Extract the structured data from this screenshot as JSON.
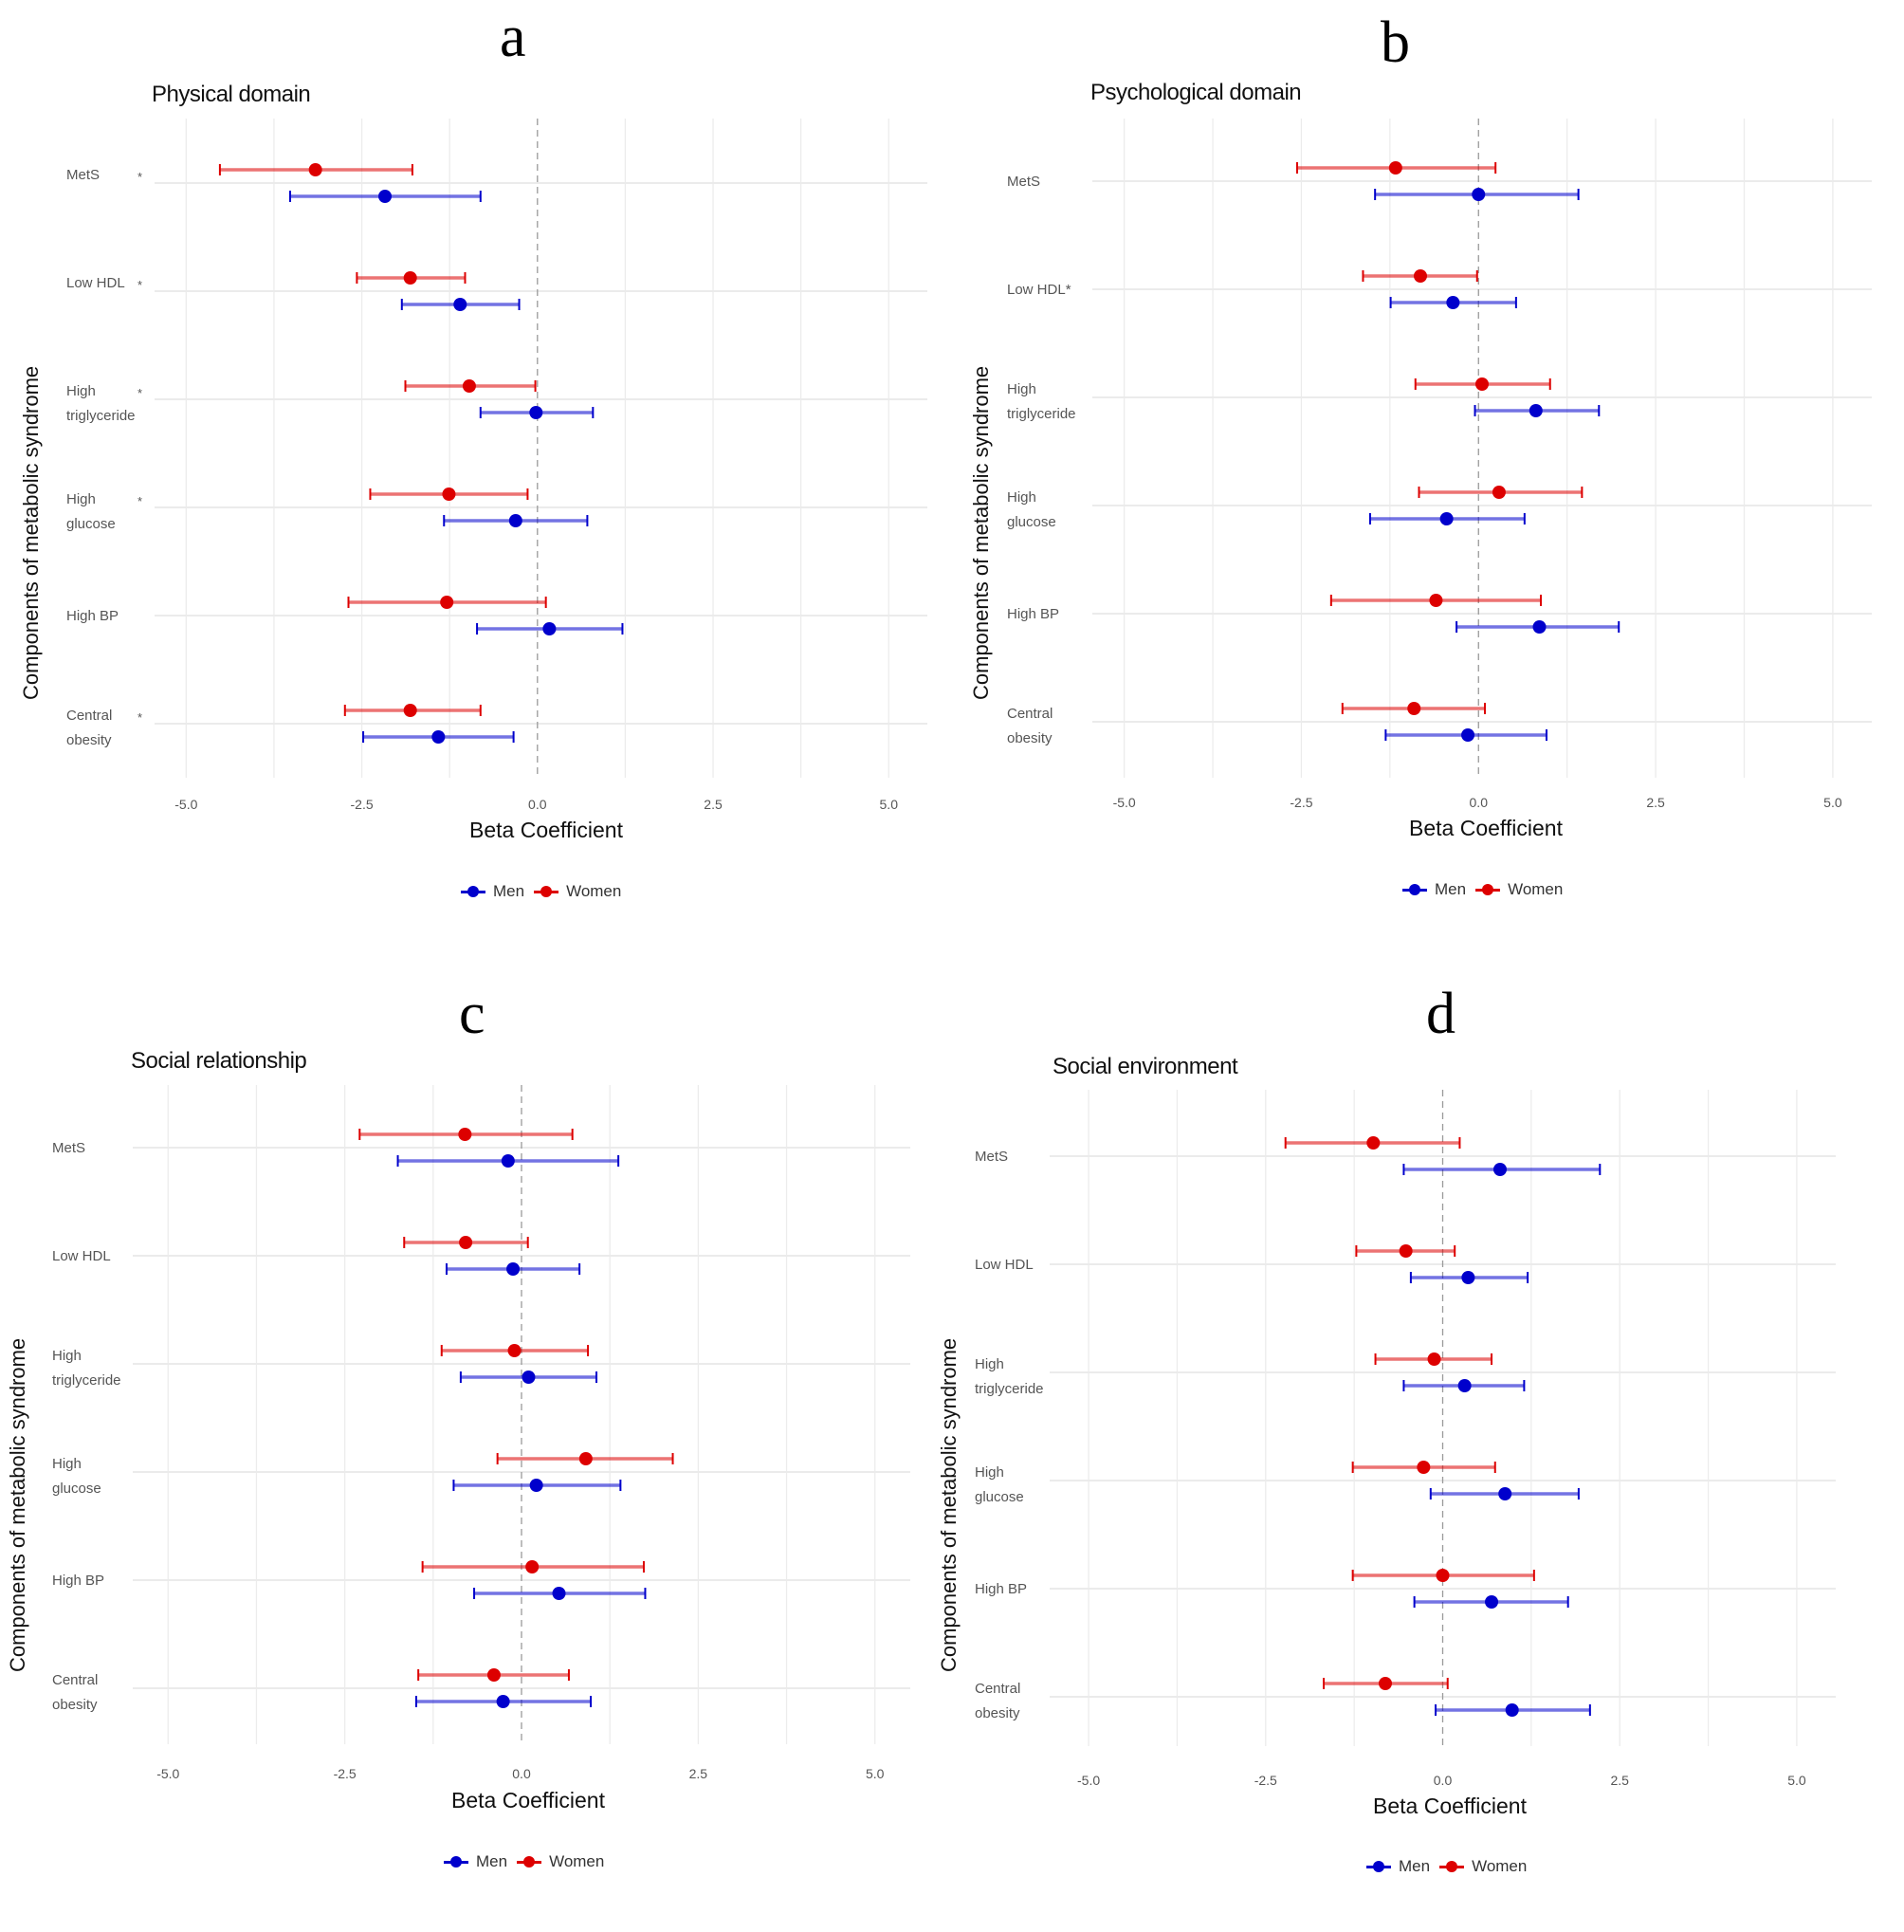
{
  "figure": {
    "panels": [
      "a",
      "b",
      "c",
      "d"
    ]
  },
  "legend": {
    "men_label": "Men",
    "women_label": "Women",
    "men_color": "#0000cc",
    "women_color": "#dd0000"
  },
  "chart_data": [
    {
      "type": "scatter",
      "subtype": "forest-plot",
      "panel_letter": "a",
      "title": "Physical domain",
      "xlabel": "Beta Coefficient",
      "ylabel": "Components of metabolic syndrome",
      "xlim": [
        -5.45,
        5.55
      ],
      "xticks": [
        -5.0,
        -2.5,
        0.0,
        2.5,
        5.0
      ],
      "xtick_labels": [
        "-5.0",
        "-2.5",
        "0.0",
        "2.5",
        "5.0"
      ],
      "reference_line": 0,
      "grid": true,
      "legend_position": "bottom",
      "categories": [
        "MetS",
        "Low HDL",
        "High triglyceride",
        "High glucose",
        "High BP",
        "Central obesity"
      ],
      "category_labels": [
        [
          "MetS",
          "*"
        ],
        [
          "Low HDL",
          "*"
        ],
        [
          "High",
          "triglyceride",
          "*"
        ],
        [
          "High",
          "glucose",
          "*"
        ],
        [
          "High BP"
        ],
        [
          "Central",
          "obesity",
          "*"
        ]
      ],
      "series": [
        {
          "name": "Women",
          "color": "#dd0000",
          "values": [
            -3.16,
            -1.81,
            -0.97,
            -1.26,
            -1.29,
            -1.81
          ],
          "ci_low": [
            -4.52,
            -2.57,
            -1.88,
            -2.38,
            -2.69,
            -2.74
          ],
          "ci_high": [
            -1.78,
            -1.03,
            -0.03,
            -0.14,
            0.12,
            -0.81
          ]
        },
        {
          "name": "Men",
          "color": "#0000cc",
          "values": [
            -2.17,
            -1.1,
            -0.02,
            -0.31,
            0.17,
            -1.41
          ],
          "ci_low": [
            -3.52,
            -1.93,
            -0.81,
            -1.33,
            -0.86,
            -2.48
          ],
          "ci_high": [
            -0.81,
            -0.26,
            0.79,
            0.71,
            1.21,
            -0.34
          ]
        }
      ]
    },
    {
      "type": "scatter",
      "subtype": "forest-plot",
      "panel_letter": "b",
      "title": "Psychological domain",
      "xlabel": "Beta Coefficient",
      "ylabel": "Components of metabolic syndrome",
      "xlim": [
        -5.45,
        5.55
      ],
      "xticks": [
        -5.0,
        -2.5,
        0.0,
        2.5,
        5.0
      ],
      "xtick_labels": [
        "-5.0",
        "-2.5",
        "0.0",
        "2.5",
        "5.0"
      ],
      "reference_line": 0,
      "grid": true,
      "legend_position": "bottom",
      "categories": [
        "MetS",
        "Low HDL",
        "High triglyceride",
        "High glucose",
        "High BP",
        "Central obesity"
      ],
      "category_labels": [
        [
          "MetS"
        ],
        [
          "Low HDL*"
        ],
        [
          "High",
          "triglyceride"
        ],
        [
          "High",
          "glucose"
        ],
        [
          "High BP"
        ],
        [
          "Central",
          "obesity"
        ]
      ],
      "series": [
        {
          "name": "Women",
          "color": "#dd0000",
          "values": [
            -1.17,
            -0.82,
            0.05,
            0.29,
            -0.6,
            -0.91
          ],
          "ci_low": [
            -2.56,
            -1.63,
            -0.89,
            -0.84,
            -2.08,
            -1.92
          ],
          "ci_high": [
            0.24,
            -0.02,
            1.01,
            1.46,
            0.88,
            0.09
          ]
        },
        {
          "name": "Men",
          "color": "#0000cc",
          "values": [
            0.0,
            -0.36,
            0.81,
            -0.45,
            0.86,
            -0.15
          ],
          "ci_low": [
            -1.46,
            -1.24,
            -0.05,
            -1.53,
            -0.31,
            -1.31
          ],
          "ci_high": [
            1.41,
            0.53,
            1.7,
            0.65,
            1.98,
            0.96
          ]
        }
      ]
    },
    {
      "type": "scatter",
      "subtype": "forest-plot",
      "panel_letter": "c",
      "title": "Social relationship",
      "xlabel": "Beta Coefficient",
      "ylabel": "Components of metabolic syndrome",
      "xlim": [
        -5.5,
        5.5
      ],
      "xticks": [
        -5.0,
        -2.5,
        0.0,
        2.5,
        5.0
      ],
      "xtick_labels": [
        "-5.0",
        "-2.5",
        "0.0",
        "2.5",
        "5.0"
      ],
      "reference_line": 0,
      "grid": true,
      "legend_position": "bottom",
      "categories": [
        "MetS",
        "Low HDL",
        "High triglyceride",
        "High glucose",
        "High BP",
        "Central obesity"
      ],
      "category_labels": [
        [
          "MetS"
        ],
        [
          "Low HDL"
        ],
        [
          "High",
          "triglyceride"
        ],
        [
          "High",
          "glucose"
        ],
        [
          "High BP"
        ],
        [
          "Central",
          "obesity"
        ]
      ],
      "series": [
        {
          "name": "Women",
          "color": "#dd0000",
          "values": [
            -0.8,
            -0.79,
            -0.1,
            0.91,
            0.15,
            -0.39
          ],
          "ci_low": [
            -2.29,
            -1.66,
            -1.13,
            -0.34,
            -1.4,
            -1.46
          ],
          "ci_high": [
            0.72,
            0.09,
            0.94,
            2.14,
            1.73,
            0.67
          ]
        },
        {
          "name": "Men",
          "color": "#0000cc",
          "values": [
            -0.19,
            -0.12,
            0.1,
            0.21,
            0.53,
            -0.26
          ],
          "ci_low": [
            -1.75,
            -1.06,
            -0.86,
            -0.96,
            -0.67,
            -1.49
          ],
          "ci_high": [
            1.37,
            0.82,
            1.06,
            1.4,
            1.75,
            0.98
          ]
        }
      ]
    },
    {
      "type": "scatter",
      "subtype": "forest-plot",
      "panel_letter": "d",
      "title": "Social environment",
      "xlabel": "Beta Coefficient",
      "ylabel": "Components of metabolic syndrome",
      "xlim": [
        -5.55,
        5.55
      ],
      "xticks": [
        -5.0,
        -2.5,
        0.0,
        2.5,
        5.0
      ],
      "xtick_labels": [
        "-5.0",
        "-2.5",
        "0.0",
        "2.5",
        "5.0"
      ],
      "reference_line": 0,
      "grid": true,
      "legend_position": "bottom",
      "categories": [
        "MetS",
        "Low HDL",
        "High triglyceride",
        "High glucose",
        "High BP",
        "Central obesity"
      ],
      "category_labels": [
        [
          "MetS"
        ],
        [
          "Low HDL"
        ],
        [
          "High",
          "triglyceride"
        ],
        [
          "High",
          "glucose"
        ],
        [
          "High BP"
        ],
        [
          "Central",
          "obesity"
        ]
      ],
      "series": [
        {
          "name": "Women",
          "color": "#dd0000",
          "values": [
            -0.98,
            -0.52,
            -0.12,
            -0.27,
            0.0,
            -0.81
          ],
          "ci_low": [
            -2.22,
            -1.22,
            -0.95,
            -1.27,
            -1.27,
            -1.68
          ],
          "ci_high": [
            0.24,
            0.17,
            0.69,
            0.74,
            1.29,
            0.07
          ]
        },
        {
          "name": "Men",
          "color": "#0000cc",
          "values": [
            0.81,
            0.36,
            0.31,
            0.88,
            0.69,
            0.98
          ],
          "ci_low": [
            -0.55,
            -0.45,
            -0.55,
            -0.17,
            -0.4,
            -0.1
          ],
          "ci_high": [
            2.22,
            1.2,
            1.15,
            1.92,
            1.77,
            2.08
          ]
        }
      ]
    }
  ]
}
